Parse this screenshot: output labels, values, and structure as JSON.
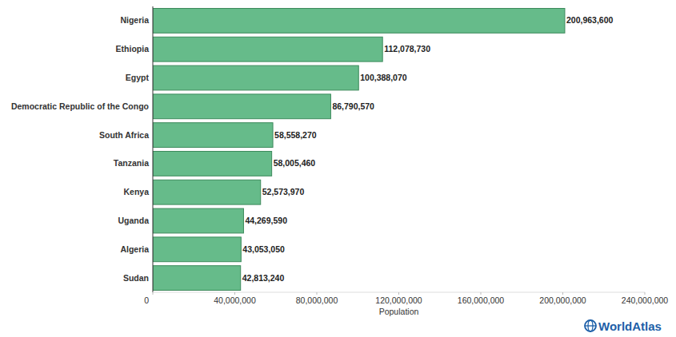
{
  "chart_data": {
    "type": "bar",
    "orientation": "horizontal",
    "categories": [
      "Nigeria",
      "Ethiopia",
      "Egypt",
      "Democratic Republic of the Congo",
      "South Africa",
      "Tanzania",
      "Kenya",
      "Uganda",
      "Algeria",
      "Sudan"
    ],
    "values": [
      200963600,
      112078730,
      100388070,
      86790570,
      58558270,
      58005460,
      52573970,
      44269590,
      43053050,
      42813240
    ],
    "value_labels": [
      "200,963,600",
      "112,078,730",
      "100,388,070",
      "86,790,570",
      "58,558,270",
      "58,005,460",
      "52,573,970",
      "44,269,590",
      "43,053,050",
      "42,813,240"
    ],
    "data_labels": true,
    "color": "#66bb8a",
    "x_label": "Population",
    "xlim": [
      0,
      240000000
    ],
    "xticks": [
      0,
      {
        "value": 40000000,
        "label": "40,000,000"
      },
      {
        "value": 80000000,
        "label": "80,000,000"
      },
      {
        "value": 120000000,
        "label": "120,000,000"
      },
      {
        "value": 160000000,
        "label": "160,000,000"
      },
      {
        "value": 200000000,
        "label": "200,000,000"
      },
      {
        "value": 240000000,
        "label": "240,000,000"
      }
    ],
    "grid": false,
    "watermark": "WorldAtlas"
  }
}
